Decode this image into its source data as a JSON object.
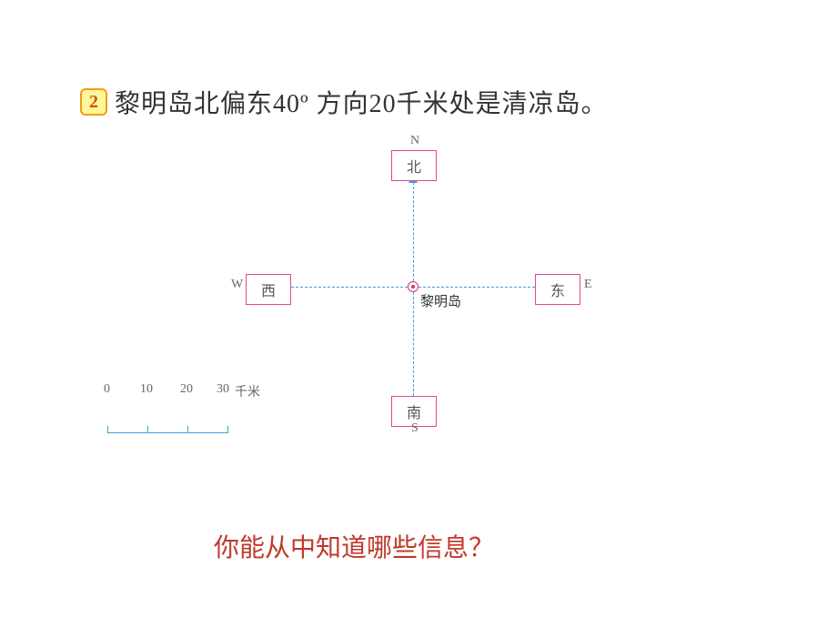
{
  "title": {
    "bullet_number": "2",
    "text": "黎明岛北偏东40º 方向20千米处是清凉岛。"
  },
  "compass": {
    "center_label": "黎明岛",
    "north_box": "北",
    "south_box": "南",
    "east_box": "东",
    "west_box": "西",
    "north_letter": "N",
    "south_letter": "S",
    "east_letter": "E",
    "west_letter": "W",
    "box_border_color": "#e84393",
    "axis_color": "#3ea0d8"
  },
  "scale": {
    "ticks": [
      "0",
      "10",
      "20",
      "30"
    ],
    "unit": "千米",
    "km_per_tick": 10,
    "color": "#3ea0d8"
  },
  "question": "你能从中知道哪些信息？",
  "colors": {
    "title_text": "#333333",
    "question_text": "#c0392b",
    "bullet_bg": "#fff59d",
    "bullet_border": "#f39c12",
    "bullet_text": "#d35400"
  }
}
